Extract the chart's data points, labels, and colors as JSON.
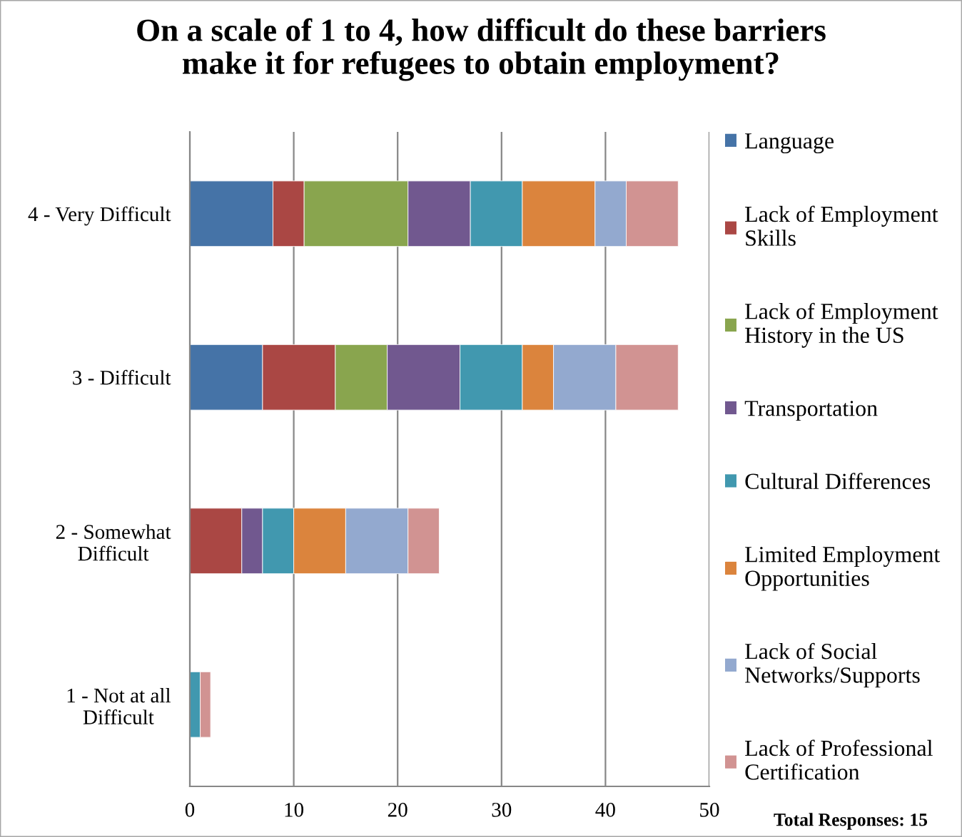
{
  "chart_data": {
    "type": "bar",
    "orientation": "horizontal",
    "stacked": true,
    "title": "On a scale of 1 to 4, how difficult do these barriers\nmake it for refugees to obtain employment?",
    "categories": [
      "4 - Very Difficult",
      "3 - Difficult",
      "2 - Somewhat\nDifficult",
      "1 - Not at all\nDifficult"
    ],
    "series": [
      {
        "name": "Language",
        "color": "#4573a7",
        "values": [
          8,
          7,
          0,
          0
        ]
      },
      {
        "name": "Lack of Employment\nSkills",
        "color": "#aa4744",
        "values": [
          3,
          7,
          5,
          0
        ]
      },
      {
        "name": "Lack of Employment\nHistory in the US",
        "color": "#89a54e",
        "values": [
          10,
          5,
          0,
          0
        ]
      },
      {
        "name": "Transportation",
        "color": "#71588f",
        "values": [
          6,
          7,
          2,
          0
        ]
      },
      {
        "name": "Cultural Differences",
        "color": "#4198af",
        "values": [
          5,
          6,
          3,
          1
        ]
      },
      {
        "name": "Limited Employment\nOpportunities",
        "color": "#db843d",
        "values": [
          7,
          3,
          5,
          0
        ]
      },
      {
        "name": "Lack of Social\nNetworks/Supports",
        "color": "#93a9cf",
        "values": [
          3,
          6,
          6,
          0
        ]
      },
      {
        "name": "Lack of Professional\nCertification",
        "color": "#d19392",
        "values": [
          5,
          6,
          3,
          1
        ]
      }
    ],
    "xlim": [
      0,
      50
    ],
    "xticks": [
      0,
      10,
      20,
      30,
      40,
      50
    ],
    "grid": "x",
    "legend": "right",
    "annotations": [
      "Total Responses: 15"
    ]
  }
}
